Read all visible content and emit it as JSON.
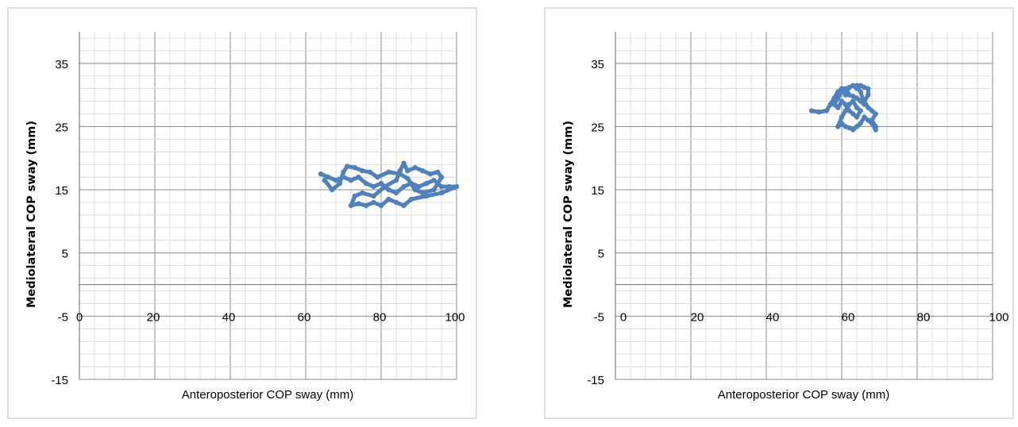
{
  "chart_data": [
    {
      "type": "scatter",
      "xlabel": "Anteroposterior COP sway (mm)",
      "ylabel": "Mediolateral COP sway (mm)",
      "xlim": [
        0,
        100
      ],
      "ylim": [
        -15,
        40
      ],
      "xticks": [
        "0",
        "20",
        "40",
        "60",
        "80",
        "100"
      ],
      "yticks": [
        "35",
        "25",
        "15",
        "5",
        "-5",
        "-15"
      ],
      "grid": true,
      "marker_color": "#4F81BD",
      "series": [
        {
          "values": [
            [
              64,
              17.5
            ],
            [
              66,
              17
            ],
            [
              68,
              16.5
            ],
            [
              70,
              17
            ],
            [
              72,
              16.5
            ],
            [
              74,
              17
            ],
            [
              76,
              16
            ],
            [
              78,
              15.5
            ],
            [
              80,
              16
            ],
            [
              82,
              15
            ],
            [
              84,
              14.5
            ],
            [
              86,
              15.5
            ],
            [
              88,
              16
            ],
            [
              90,
              15.5
            ],
            [
              92,
              16
            ],
            [
              94,
              16.5
            ],
            [
              96,
              15.5
            ],
            [
              98,
              15.5
            ],
            [
              100,
              15.5
            ],
            [
              96,
              14.5
            ],
            [
              92,
              14
            ],
            [
              88,
              13.5
            ],
            [
              86,
              12.5
            ],
            [
              84,
              13
            ],
            [
              82,
              13.5
            ],
            [
              80,
              12.5
            ],
            [
              78,
              13
            ],
            [
              76,
              12.5
            ],
            [
              74,
              12.8
            ],
            [
              72,
              12.5
            ],
            [
              73,
              14
            ],
            [
              75,
              14.5
            ],
            [
              78,
              14
            ],
            [
              81,
              15.5
            ],
            [
              84,
              16.5
            ],
            [
              85,
              18
            ],
            [
              86,
              19.2
            ],
            [
              87,
              18
            ],
            [
              89,
              18.5
            ],
            [
              91,
              18
            ],
            [
              93,
              17.5
            ],
            [
              95,
              17.8
            ],
            [
              96,
              17
            ],
            [
              94,
              15
            ],
            [
              91,
              14.5
            ],
            [
              89,
              15
            ],
            [
              87,
              16.8
            ],
            [
              85,
              17.5
            ],
            [
              82,
              17.8
            ],
            [
              79,
              17
            ],
            [
              77,
              17.8
            ],
            [
              75,
              18
            ],
            [
              73,
              18.5
            ],
            [
              71,
              18.7
            ],
            [
              70,
              17.8
            ],
            [
              69,
              16
            ],
            [
              67,
              15
            ],
            [
              65,
              16.5
            ]
          ]
        }
      ]
    },
    {
      "type": "scatter",
      "xlabel": "Anteroposterior COP sway (mm)",
      "ylabel": "Mediolateral COP sway (mm)",
      "xlim": [
        0,
        100
      ],
      "ylim": [
        -15,
        40
      ],
      "xticks": [
        "0",
        "20",
        "40",
        "60",
        "80",
        "100"
      ],
      "yticks": [
        "35",
        "25",
        "15",
        "5",
        "-5",
        "-15"
      ],
      "grid": true,
      "marker_color": "#4F81BD",
      "series": [
        {
          "values": [
            [
              52,
              27.5
            ],
            [
              54,
              27.3
            ],
            [
              56,
              27.5
            ],
            [
              57,
              28.5
            ],
            [
              58,
              29.5
            ],
            [
              59,
              30.5
            ],
            [
              60,
              31
            ],
            [
              61,
              30
            ],
            [
              62,
              31.2
            ],
            [
              63,
              31.5
            ],
            [
              64,
              31
            ],
            [
              65,
              31.5
            ],
            [
              66,
              31.2
            ],
            [
              67,
              31
            ],
            [
              67,
              30
            ],
            [
              66,
              29
            ],
            [
              67,
              28
            ],
            [
              68,
              27.5
            ],
            [
              69,
              27
            ],
            [
              68,
              26
            ],
            [
              69,
              25
            ],
            [
              69,
              24.5
            ],
            [
              68,
              25.5
            ],
            [
              67,
              26
            ],
            [
              66,
              26.5
            ],
            [
              65,
              25.5
            ],
            [
              64,
              25
            ],
            [
              63,
              24.5
            ],
            [
              62,
              24.8
            ],
            [
              61,
              25
            ],
            [
              60,
              25.5
            ],
            [
              59,
              25
            ],
            [
              60,
              26.5
            ],
            [
              61,
              27.5
            ],
            [
              62,
              28.5
            ],
            [
              63,
              29
            ],
            [
              64,
              28
            ],
            [
              65,
              27.5
            ],
            [
              64,
              26.5
            ],
            [
              63,
              27
            ],
            [
              62,
              27.5
            ],
            [
              61,
              28.5
            ],
            [
              60,
              29
            ],
            [
              59,
              28
            ],
            [
              58,
              28.5
            ],
            [
              59,
              29.5
            ],
            [
              60,
              30.5
            ],
            [
              61,
              31
            ],
            [
              62,
              30
            ],
            [
              63,
              29.8
            ],
            [
              64,
              29.5
            ],
            [
              65,
              29
            ],
            [
              66,
              28.5
            ],
            [
              65,
              30.5
            ],
            [
              64,
              31.5
            ]
          ]
        }
      ]
    }
  ]
}
